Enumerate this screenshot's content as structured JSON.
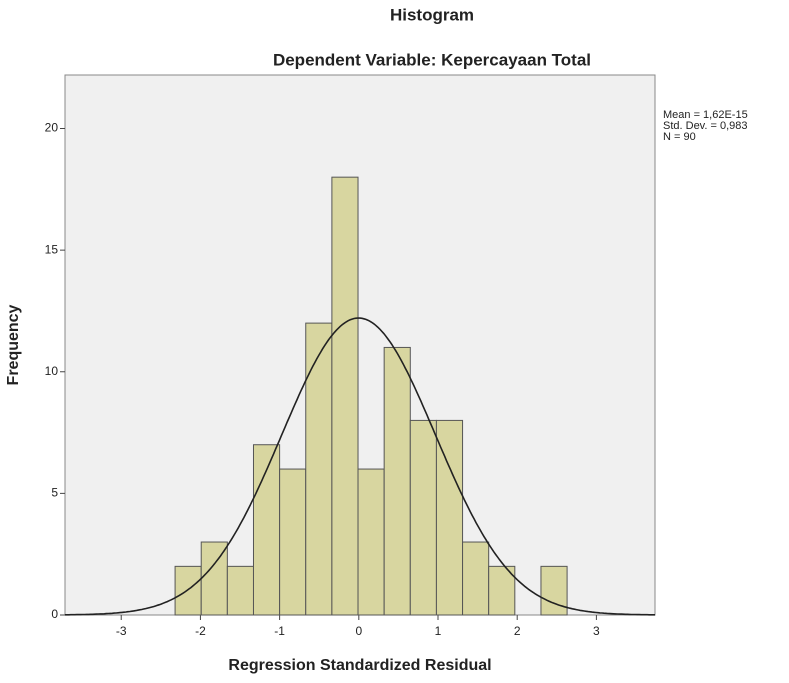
{
  "chart_data": {
    "type": "histogram",
    "title": "Histogram",
    "subtitle": "Dependent Variable: Kepercayaan Total",
    "x_label": "Regression Standardized Residual",
    "y_label": "Frequency",
    "bins": [
      -2.32,
      -1.99,
      -1.66,
      -1.33,
      -1.0,
      -0.67,
      -0.34,
      -0.01,
      0.32,
      0.65,
      0.98,
      1.31,
      1.64,
      1.97,
      2.3,
      2.63
    ],
    "values": [
      2,
      3,
      2,
      7,
      6,
      12,
      18,
      6,
      11,
      8,
      8,
      3,
      2,
      0,
      2
    ],
    "color": "#d8d6a0",
    "normal_curve": true,
    "stats": [
      "Mean = 1,62E-15",
      "Std. Dev. = 0,983",
      "N = 90"
    ],
    "xlim": [
      -3.71,
      3.74
    ],
    "xticks": [
      -3,
      -2,
      -1,
      0,
      1,
      2,
      3
    ],
    "ylim": [
      0,
      22.2
    ],
    "yticks": [
      0,
      5,
      10,
      15,
      20
    ]
  }
}
